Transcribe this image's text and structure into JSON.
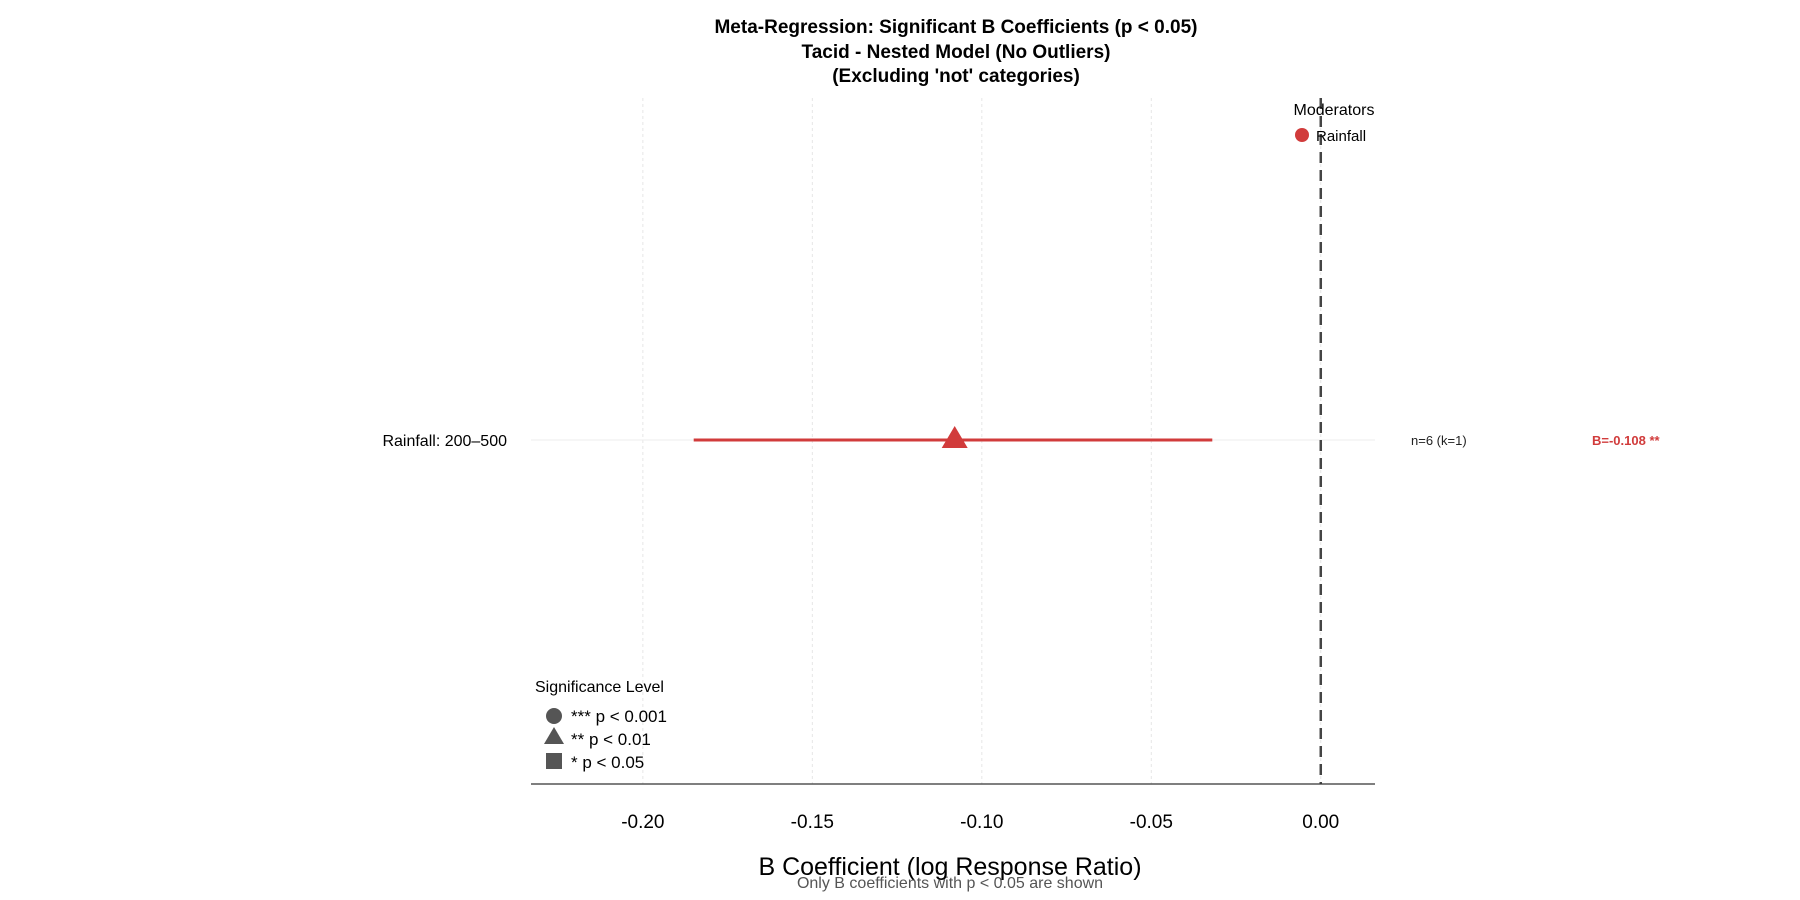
{
  "chart_data": {
    "type": "scatter",
    "title_lines": [
      "Meta-Regression: Significant B Coefficients (p < 0.05)",
      "Tacid - Nested Model (No Outliers)",
      "(Excluding 'not' categories)"
    ],
    "xlabel": "B Coefficient (log Response Ratio)",
    "caption": "Only B coefficients with p < 0.05 are shown",
    "xlim": [
      -0.233,
      0.016
    ],
    "x_ticks": [
      -0.2,
      -0.15,
      -0.1,
      -0.05,
      0.0
    ],
    "x_tick_labels": [
      "-0.20",
      "-0.15",
      "-0.10",
      "-0.05",
      "0.00"
    ],
    "reference_line": 0.0,
    "grid": true,
    "points": [
      {
        "category": "Rainfall: 200–500",
        "estimate": -0.108,
        "ci_low": -0.185,
        "ci_high": -0.032,
        "moderator": "Rainfall",
        "significance": "**",
        "shape": "triangle",
        "n_label": "n=6 (k=1)",
        "b_label": "B=-0.108 **"
      }
    ],
    "legend_moderators": {
      "title": "Moderators",
      "placement": "top-right",
      "items": [
        {
          "label": "Rainfall",
          "color": "#d13b3b"
        }
      ]
    },
    "legend_significance": {
      "title": "Significance Level",
      "placement": "bottom-left",
      "items": [
        {
          "label": "*** p < 0.001",
          "shape": "circle"
        },
        {
          "label": "** p < 0.01",
          "shape": "triangle"
        },
        {
          "label": "* p < 0.05",
          "shape": "square"
        }
      ]
    },
    "colors": {
      "series": "#d13b3b",
      "reference": "#444444",
      "legend_shape": "#555555",
      "grid": "#e6e6e6"
    }
  }
}
